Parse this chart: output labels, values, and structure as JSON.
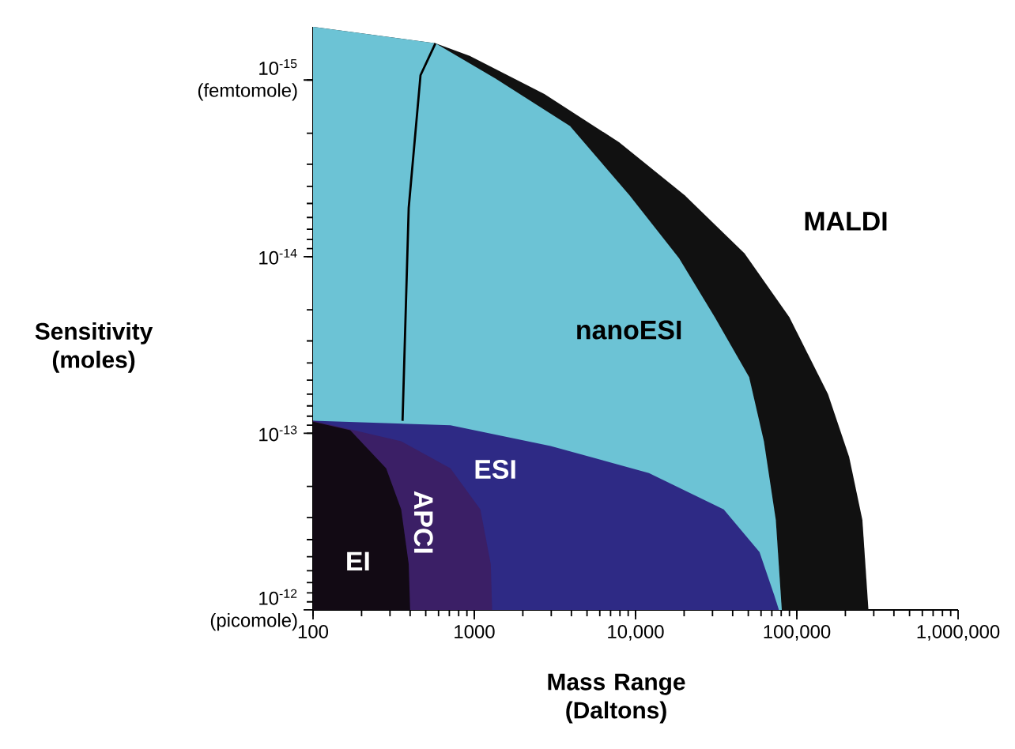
{
  "chart_data": {
    "type": "area",
    "xlabel": "Mass Range (Daltons)",
    "ylabel": "Sensitivity (moles)",
    "log": "xy",
    "grid": false,
    "legend": false,
    "xlim": [
      100,
      1000000
    ],
    "ylim": [
      1e-12,
      5e-16
    ],
    "xticks": [
      100,
      1000,
      {
        "value": 10000,
        "label": "10,000"
      },
      {
        "value": 100000,
        "label": "100,000"
      },
      {
        "value": 1000000,
        "label": "1,000,000"
      }
    ],
    "yticks": [
      {
        "value": 1e-15,
        "label": "10$^{-15}$ (femtomole)"
      },
      {
        "value": 1e-14,
        "label": "10$^{-14}$"
      },
      {
        "value": 1e-13,
        "label": "10$^{-13}$"
      },
      {
        "value": 1e-12,
        "label": "10$^{-12}$ (picomole)"
      }
    ],
    "series": [
      {
        "name": "MALDI",
        "color": "#111111",
        "x": [
          100,
          100,
          574,
          937,
          2720,
          7900,
          20200,
          47400,
          89900,
          156000,
          211000,
          255000,
          278000
        ],
        "values": [
          1e-12,
          5e-16,
          6.2e-16,
          7.3e-16,
          1.2e-15,
          2.25e-15,
          4.5e-15,
          9.6e-15,
          2.2e-14,
          6e-14,
          1.36e-13,
          3.1e-13,
          1e-12
        ]
      },
      {
        "name": "nanoESI",
        "color": "#6cc3d5",
        "x": [
          100,
          100,
          574,
          1349,
          3920,
          9180,
          18600,
          31000,
          50600,
          62500,
          74100,
          80700
        ],
        "values": [
          1e-12,
          5e-16,
          6.2e-16,
          9.8e-16,
          1.82e-15,
          4.5e-15,
          1.02e-14,
          2.2e-14,
          4.8e-14,
          1.11e-13,
          3.1e-13,
          1e-12
        ]
      },
      {
        "type": "line",
        "color": "#000000",
        "x": [
          359,
          392,
          464,
          574
        ],
        "values": [
          8.5e-14,
          5.3e-15,
          9.4e-16,
          6.2e-16
        ]
      },
      {
        "name": "ESI",
        "color": "#2e2a85",
        "x": [
          100,
          100,
          711,
          2970,
          12100,
          35200,
          58700,
          72600,
          77400
        ],
        "values": [
          1e-12,
          8.5e-14,
          9e-14,
          1.18e-13,
          1.68e-13,
          2.7e-13,
          4.7e-13,
          8.3e-13,
          1e-12
        ]
      },
      {
        "name": "APCI",
        "color": "#3b1f66",
        "x": [
          100,
          100,
          352,
          711,
          1090,
          1265,
          1290
        ],
        "values": [
          1e-12,
          8.5e-14,
          1.11e-13,
          1.58e-13,
          2.7e-13,
          5.5e-13,
          1e-12
        ]
      },
      {
        "name": "EI",
        "color": "#120a14",
        "x": [
          100,
          100,
          170,
          284,
          352,
          392,
          400
        ],
        "values": [
          1e-12,
          8.6e-14,
          9.6e-14,
          1.58e-13,
          2.7e-13,
          5.5e-13,
          1e-12
        ]
      }
    ]
  }
}
